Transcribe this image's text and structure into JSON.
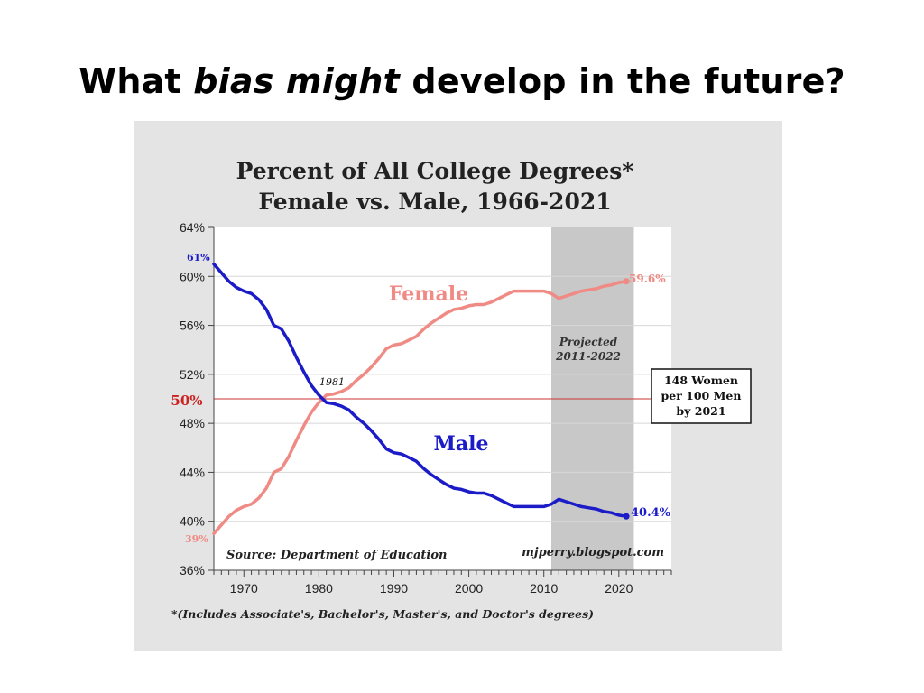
{
  "slide": {
    "title_before": "What ",
    "title_em": "bias might",
    "title_after": " develop in the future?"
  },
  "chart_data": {
    "type": "line",
    "title": "Percent of All College Degrees*",
    "subtitle": "Female vs. Male, 1966-2021",
    "xlabel": "",
    "ylabel": "",
    "xlim": [
      1966,
      2027
    ],
    "ylim": [
      36,
      64
    ],
    "x_ticks": [
      1970,
      1980,
      1990,
      2000,
      2010,
      2020
    ],
    "y_ticks": [
      {
        "value": 36,
        "label": "36%"
      },
      {
        "value": 40,
        "label": "40%"
      },
      {
        "value": 44,
        "label": "44%"
      },
      {
        "value": 48,
        "label": "48%"
      },
      {
        "value": 52,
        "label": "52%"
      },
      {
        "value": 56,
        "label": "56%"
      },
      {
        "value": 60,
        "label": "60%"
      },
      {
        "value": 64,
        "label": "64%"
      }
    ],
    "grid": true,
    "reference_line": {
      "value": 50,
      "label": "50%",
      "color": "#cc3333"
    },
    "projected_band": {
      "x_range": [
        2011,
        2022
      ],
      "label_line1": "Projected",
      "label_line2": "2011-2022",
      "color": "#c8c8c8"
    },
    "x": [
      1966,
      1967,
      1968,
      1969,
      1970,
      1971,
      1972,
      1973,
      1974,
      1975,
      1976,
      1977,
      1978,
      1979,
      1980,
      1981,
      1982,
      1983,
      1984,
      1985,
      1986,
      1987,
      1988,
      1989,
      1990,
      1991,
      1992,
      1993,
      1994,
      1995,
      1996,
      1997,
      1998,
      1999,
      2000,
      2001,
      2002,
      2003,
      2004,
      2005,
      2006,
      2007,
      2008,
      2009,
      2010,
      2011,
      2012,
      2013,
      2014,
      2015,
      2016,
      2017,
      2018,
      2019,
      2020,
      2021
    ],
    "series": [
      {
        "name": "Female",
        "color": "#f08a84",
        "values": [
          39.0,
          39.7,
          40.4,
          40.9,
          41.2,
          41.4,
          41.9,
          42.7,
          44.0,
          44.3,
          45.3,
          46.6,
          47.8,
          48.9,
          49.7,
          50.3,
          50.4,
          50.6,
          50.9,
          51.5,
          52.0,
          52.6,
          53.3,
          54.1,
          54.4,
          54.5,
          54.8,
          55.1,
          55.7,
          56.2,
          56.6,
          57.0,
          57.3,
          57.4,
          57.6,
          57.7,
          57.7,
          57.9,
          58.2,
          58.5,
          58.8,
          58.8,
          58.8,
          58.8,
          58.8,
          58.6,
          58.2,
          58.4,
          58.6,
          58.8,
          58.9,
          59.0,
          59.2,
          59.3,
          59.5,
          59.6
        ]
      },
      {
        "name": "Male",
        "color": "#1b1bc8",
        "values": [
          61.0,
          60.3,
          59.6,
          59.1,
          58.8,
          58.6,
          58.1,
          57.3,
          56.0,
          55.7,
          54.7,
          53.4,
          52.2,
          51.1,
          50.3,
          49.7,
          49.6,
          49.4,
          49.1,
          48.5,
          48.0,
          47.4,
          46.7,
          45.9,
          45.6,
          45.5,
          45.2,
          44.9,
          44.3,
          43.8,
          43.4,
          43.0,
          42.7,
          42.6,
          42.4,
          42.3,
          42.3,
          42.1,
          41.8,
          41.5,
          41.2,
          41.2,
          41.2,
          41.2,
          41.2,
          41.4,
          41.8,
          41.6,
          41.4,
          41.2,
          41.1,
          41.0,
          40.8,
          40.7,
          40.5,
          40.4
        ]
      }
    ],
    "annotations": {
      "female_start": "39%",
      "female_end": "59.6%",
      "male_start": "61%",
      "male_end": "40.4%",
      "crossover": "1981",
      "female_label": "Female",
      "male_label": "Male",
      "callout_line1": "148 Women",
      "callout_line2": "per 100 Men",
      "callout_line3": "by 2021",
      "source": "Source: Department of Education",
      "site": "mjperry.blogspot.com",
      "footnote": "*(Includes Associate's, Bachelor's, Master's, and Doctor's degrees)"
    }
  }
}
